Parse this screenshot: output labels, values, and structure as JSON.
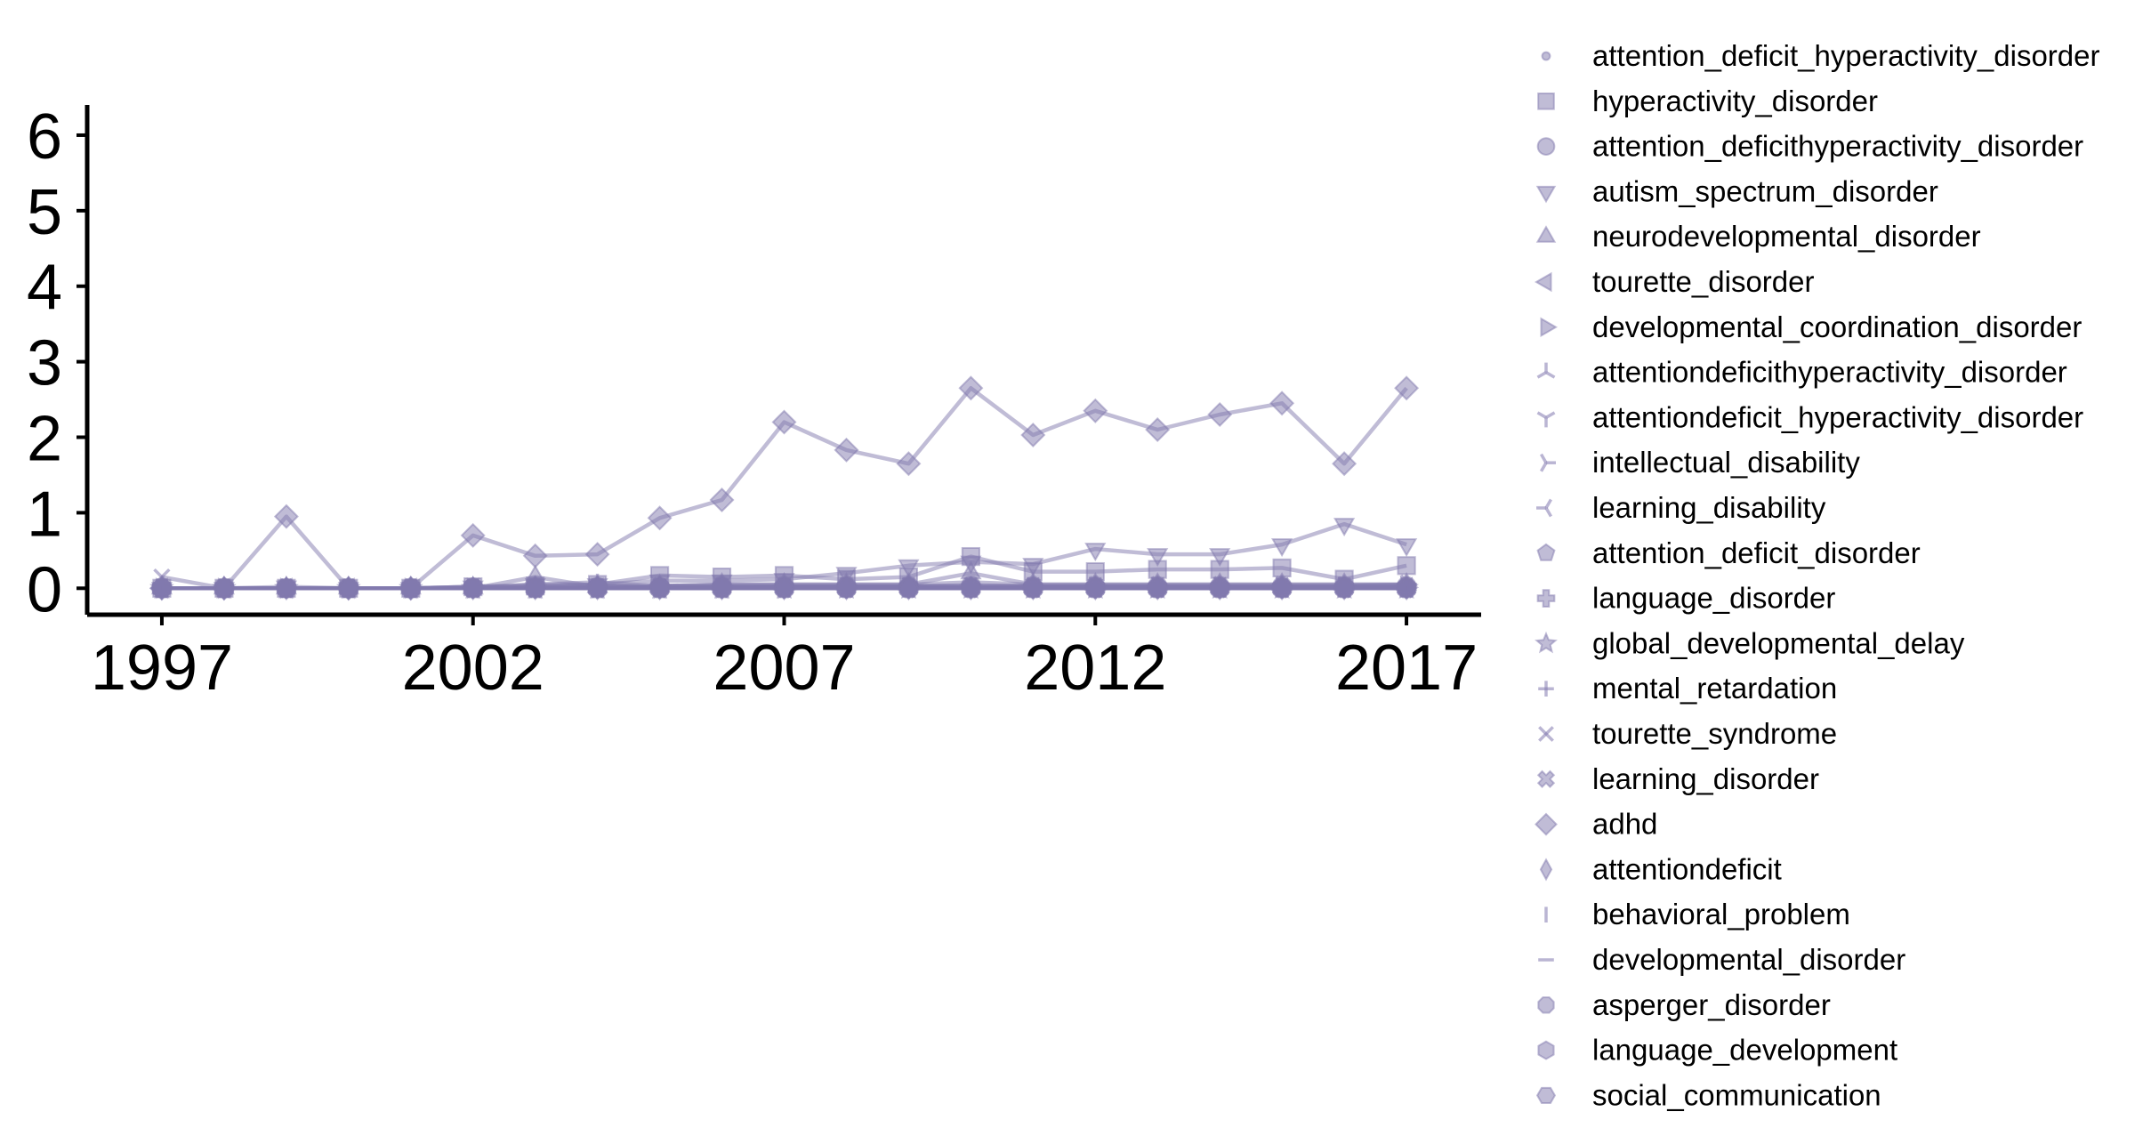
{
  "chart_data": {
    "type": "line",
    "title": "",
    "xlabel": "",
    "ylabel": "",
    "xlim": [
      1995.8,
      2018.2
    ],
    "ylim": [
      -0.35,
      6.4
    ],
    "xticks": [
      1997,
      2002,
      2007,
      2012,
      2017
    ],
    "yticks": [
      0,
      1,
      2,
      3,
      4,
      5,
      6
    ],
    "grid": false,
    "legend_position": "outside-right",
    "line_color": "#8279AE",
    "x": [
      1997,
      1998,
      1999,
      2000,
      2001,
      2002,
      2003,
      2004,
      2005,
      2006,
      2007,
      2008,
      2009,
      2010,
      2011,
      2012,
      2013,
      2014,
      2015,
      2016,
      2017
    ],
    "series": [
      {
        "name": "attention_deficit_hyperactivity_disorder",
        "marker": "point",
        "values": [
          0,
          0,
          0,
          0,
          0,
          0.02,
          0.02,
          0.03,
          0.03,
          0.05,
          0.05,
          0.05,
          0.05,
          0.08,
          0.05,
          0.05,
          0.05,
          0.05,
          0.05,
          0.05,
          0.05
        ]
      },
      {
        "name": "hyperactivity_disorder",
        "marker": "square",
        "values": [
          0,
          0,
          0,
          0,
          0,
          0.02,
          0.03,
          0.05,
          0.17,
          0.15,
          0.17,
          0.12,
          0.15,
          0.42,
          0.22,
          0.22,
          0.25,
          0.25,
          0.27,
          0.12,
          0.3
        ]
      },
      {
        "name": "attention_deficithyperactivity_disorder",
        "marker": "circle",
        "values": [
          0,
          0,
          0,
          0,
          0,
          0.01,
          0.01,
          0.02,
          0.02,
          0.03,
          0.03,
          0.03,
          0.03,
          0.04,
          0.03,
          0.03,
          0.03,
          0.03,
          0.03,
          0.03,
          0.03
        ]
      },
      {
        "name": "autism_spectrum_disorder",
        "marker": "triangle_down",
        "values": [
          0,
          0,
          0.02,
          0,
          0,
          0.02,
          0.05,
          0.05,
          0.1,
          0.1,
          0.12,
          0.2,
          0.3,
          0.35,
          0.32,
          0.52,
          0.45,
          0.45,
          0.58,
          0.85,
          0.58
        ]
      },
      {
        "name": "neurodevelopmental_disorder",
        "marker": "triangle_up",
        "values": [
          0,
          0,
          0,
          0,
          0,
          0,
          0.15,
          0.02,
          0.03,
          0.05,
          0.05,
          0.05,
          0.05,
          0.2,
          0.05,
          0.05,
          0.05,
          0.05,
          0.05,
          0.05,
          0.05
        ]
      },
      {
        "name": "tourette_disorder",
        "marker": "triangle_left",
        "values": [
          0,
          0,
          0,
          0,
          0,
          0,
          0,
          0,
          0,
          0,
          0.01,
          0.01,
          0.01,
          0.01,
          0.01,
          0.01,
          0.01,
          0.01,
          0.01,
          0.01,
          0.01
        ]
      },
      {
        "name": "developmental_coordination_disorder",
        "marker": "triangle_right",
        "values": [
          0,
          0,
          0,
          0,
          0,
          0,
          0,
          0,
          0,
          0,
          0,
          0.01,
          0.01,
          0.01,
          0.01,
          0.01,
          0.01,
          0.01,
          0.01,
          0.01,
          0.01
        ]
      },
      {
        "name": "attentiondeficithyperactivity_disorder",
        "marker": "tri_down",
        "values": [
          0,
          0,
          0,
          0,
          0,
          0,
          0,
          0,
          0,
          0,
          0,
          0,
          0,
          0,
          0,
          0,
          0,
          0,
          0,
          0,
          0
        ]
      },
      {
        "name": "attentiondeficit_hyperactivity_disorder",
        "marker": "tri_up",
        "values": [
          0,
          0,
          0,
          0,
          0,
          0,
          0,
          0,
          0,
          0,
          0,
          0,
          0,
          0,
          0,
          0,
          0,
          0,
          0,
          0,
          0
        ]
      },
      {
        "name": "intellectual_disability",
        "marker": "tri_left",
        "values": [
          0,
          0,
          0,
          0,
          0,
          0,
          0,
          0,
          0.02,
          0.02,
          0.02,
          0.02,
          0.02,
          0.02,
          0.02,
          0.03,
          0.03,
          0.03,
          0.03,
          0.03,
          0.05
        ]
      },
      {
        "name": "learning_disability",
        "marker": "tri_right",
        "values": [
          0,
          0,
          0,
          0,
          0,
          0,
          0,
          0,
          0,
          0,
          0,
          0,
          0,
          0,
          0,
          0,
          0,
          0,
          0,
          0,
          0
        ]
      },
      {
        "name": "attention_deficit_disorder",
        "marker": "pentagon",
        "values": [
          0,
          0,
          0,
          0,
          0,
          0,
          0,
          0.02,
          0.02,
          0.02,
          0.02,
          0.02,
          0.02,
          0.02,
          0.02,
          0.02,
          0.02,
          0.02,
          0.02,
          0.02,
          0.02
        ]
      },
      {
        "name": "language_disorder",
        "marker": "plus_filled",
        "values": [
          0,
          0,
          0,
          0,
          0,
          0,
          0,
          0,
          0,
          0,
          0,
          0,
          0,
          0,
          0,
          0,
          0,
          0,
          0,
          0,
          0
        ]
      },
      {
        "name": "global_developmental_delay",
        "marker": "star",
        "values": [
          0,
          0,
          0,
          0,
          0,
          0,
          0,
          0,
          0,
          0,
          0,
          0,
          0,
          0,
          0,
          0,
          0,
          0,
          0,
          0,
          0
        ]
      },
      {
        "name": "mental_retardation",
        "marker": "plus",
        "values": [
          0,
          0,
          0,
          0,
          0,
          0,
          0.05,
          0.08,
          0.03,
          0.03,
          0.03,
          0.03,
          0.03,
          0.03,
          0.03,
          0.03,
          0.03,
          0.03,
          0.03,
          0.03,
          0.03
        ]
      },
      {
        "name": "tourette_syndrome",
        "marker": "x",
        "values": [
          0.15,
          0,
          0,
          0,
          0,
          0,
          0,
          0,
          0,
          0,
          0,
          0,
          0,
          0,
          0,
          0,
          0,
          0,
          0,
          0,
          0
        ]
      },
      {
        "name": "learning_disorder",
        "marker": "x_filled",
        "values": [
          0,
          0,
          0,
          0,
          0,
          0,
          0,
          0,
          0,
          0,
          0,
          0,
          0,
          0,
          0,
          0,
          0,
          0,
          0,
          0,
          0
        ]
      },
      {
        "name": "adhd",
        "marker": "diamond",
        "values": [
          0,
          0,
          0.95,
          0,
          0,
          0.7,
          0.43,
          0.45,
          0.93,
          1.17,
          2.2,
          1.83,
          1.65,
          2.65,
          2.03,
          2.35,
          2.1,
          2.3,
          2.45,
          1.65,
          2.65
        ]
      },
      {
        "name": "attentiondeficit",
        "marker": "thin_diamond",
        "values": [
          0,
          0,
          0,
          0,
          0,
          0,
          0,
          0,
          0,
          0,
          0,
          0,
          0,
          0,
          0,
          0,
          0,
          0,
          0,
          0,
          0
        ]
      },
      {
        "name": "behavioral_problem",
        "marker": "vline",
        "values": [
          0,
          0,
          0,
          0,
          0,
          0,
          0,
          0,
          0,
          0,
          0,
          0,
          0,
          0,
          0,
          0,
          0,
          0,
          0,
          0,
          0
        ]
      },
      {
        "name": "developmental_disorder",
        "marker": "hline",
        "values": [
          0,
          0,
          0,
          0,
          0,
          0,
          0,
          0,
          0,
          0,
          0,
          0,
          0,
          0,
          0,
          0,
          0,
          0,
          0,
          0,
          0
        ]
      },
      {
        "name": "asperger_disorder",
        "marker": "octagon",
        "values": [
          0,
          0,
          0,
          0,
          0,
          0,
          0,
          0,
          0,
          0,
          0,
          0,
          0,
          0,
          0,
          0,
          0,
          0,
          0,
          0,
          0
        ]
      },
      {
        "name": "language_development",
        "marker": "hexagon1",
        "values": [
          0,
          0,
          0,
          0,
          0,
          0,
          0,
          0,
          0,
          0,
          0,
          0,
          0,
          0,
          0,
          0,
          0,
          0,
          0,
          0,
          0
        ]
      },
      {
        "name": "social_communication",
        "marker": "hexagon2",
        "values": [
          0,
          0,
          0,
          0,
          0,
          0,
          0,
          0,
          0,
          0,
          0,
          0,
          0,
          0,
          0,
          0,
          0,
          0,
          0,
          0,
          0
        ]
      }
    ]
  }
}
